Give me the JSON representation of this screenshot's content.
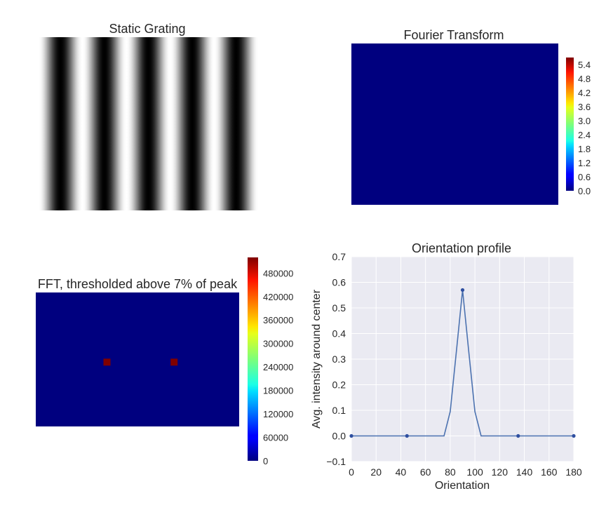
{
  "figure": {
    "panels": [
      {
        "title": "Static Grating"
      },
      {
        "title": "Fourier Transform",
        "colorbar_ticks": [
          "0.0",
          "0.6",
          "1.2",
          "1.8",
          "2.4",
          "3.0",
          "3.6",
          "4.2",
          "4.8",
          "5.4"
        ]
      },
      {
        "title": "FFT, thresholded above 7% of peak",
        "colorbar_ticks": [
          "0",
          "60000",
          "120000",
          "180000",
          "240000",
          "300000",
          "360000",
          "420000",
          "480000"
        ]
      },
      {
        "title": "Orientation profile"
      }
    ]
  },
  "chart_data": [
    {
      "type": "heatmap",
      "title": "Static Grating",
      "description_values": {
        "pattern": "vertical sinusoidal grating",
        "dark_stripes": 5,
        "colormap": "gray"
      }
    },
    {
      "type": "heatmap",
      "title": "Fourier Transform",
      "colormap": "jet",
      "colorbar": {
        "min": 0.0,
        "max": 5.7,
        "ticks": [
          0.0,
          0.6,
          1.2,
          1.8,
          2.4,
          3.0,
          3.6,
          4.2,
          4.8,
          5.4
        ]
      },
      "fill_level": 0.0
    },
    {
      "type": "heatmap",
      "title": "FFT, thresholded above 7% of peak",
      "colormap": "jet",
      "colorbar": {
        "min": 0,
        "max": 520000,
        "ticks": [
          0,
          60000,
          120000,
          180000,
          240000,
          300000,
          360000,
          420000,
          480000
        ]
      },
      "peaks": [
        {
          "x": 0.35,
          "y": 0.52,
          "value": 520000
        },
        {
          "x": 0.68,
          "y": 0.52,
          "value": 520000
        }
      ]
    },
    {
      "type": "line",
      "title": "Orientation profile",
      "xlabel": "Orientation",
      "ylabel": "Avg. intensity around center",
      "xlim": [
        0,
        180
      ],
      "ylim": [
        -0.1,
        0.7
      ],
      "xticks": [
        0,
        20,
        40,
        60,
        80,
        100,
        120,
        140,
        160,
        180
      ],
      "yticks": [
        "−0.1",
        "0.0",
        "0.1",
        "0.2",
        "0.3",
        "0.4",
        "0.5",
        "0.6",
        "0.7"
      ],
      "grid": true,
      "series": [
        {
          "x": [
            0,
            5,
            10,
            15,
            20,
            25,
            30,
            35,
            40,
            45,
            50,
            55,
            60,
            65,
            70,
            75,
            80,
            85,
            90,
            95,
            100,
            105,
            110,
            115,
            120,
            125,
            130,
            135,
            140,
            145,
            150,
            155,
            160,
            165,
            170,
            175,
            180
          ],
          "values": [
            0,
            0,
            0,
            0,
            0,
            0,
            0,
            0,
            0,
            0,
            0,
            0,
            0,
            0,
            0,
            0,
            0.095,
            0.33,
            0.57,
            0.33,
            0.095,
            0,
            0,
            0,
            0,
            0,
            0,
            0,
            0,
            0,
            0,
            0,
            0,
            0,
            0,
            0,
            0
          ],
          "markers": [
            {
              "x": 0,
              "y": 0
            },
            {
              "x": 45,
              "y": 0
            },
            {
              "x": 90,
              "y": 0.57
            },
            {
              "x": 135,
              "y": 0
            },
            {
              "x": 180,
              "y": 0
            }
          ],
          "color": "#4c72b0"
        }
      ]
    }
  ]
}
